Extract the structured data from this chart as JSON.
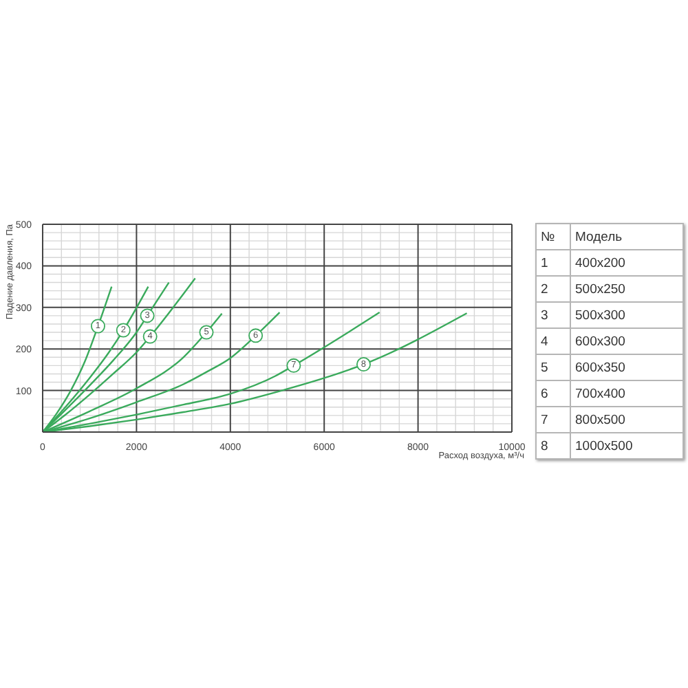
{
  "chart_data": {
    "type": "line",
    "xlabel": "Расход воздуха, м³/ч",
    "ylabel": "Падение давления, Па",
    "xlim": [
      0,
      10000
    ],
    "ylim": [
      0,
      500
    ],
    "xticks": [
      0,
      {
        "value": 400,
        "label": null
      },
      {
        "value": 800,
        "label": null
      },
      {
        "value": 1200,
        "label": null
      },
      {
        "value": 1600,
        "label": null
      },
      2000,
      {
        "value": 2400,
        "label": null
      },
      {
        "value": 2800,
        "label": null
      },
      {
        "value": 3200,
        "label": null
      },
      {
        "value": 3600,
        "label": null
      },
      4000,
      {
        "value": 4400,
        "label": null
      },
      {
        "value": 4800,
        "label": null
      },
      {
        "value": 5200,
        "label": null
      },
      {
        "value": 5600,
        "label": null
      },
      6000,
      {
        "value": 6400,
        "label": null
      },
      {
        "value": 6800,
        "label": null
      },
      {
        "value": 7200,
        "label": null
      },
      {
        "value": 7600,
        "label": null
      },
      8000,
      {
        "value": 8400,
        "label": null
      },
      {
        "value": 8800,
        "label": null
      },
      {
        "value": 9200,
        "label": null
      },
      {
        "value": 9600,
        "label": null
      },
      10000
    ],
    "yticks": [
      {
        "value": 0,
        "label": null
      },
      {
        "value": 20,
        "label": null
      },
      {
        "value": 40,
        "label": null
      },
      {
        "value": 60,
        "label": null
      },
      {
        "value": 80,
        "label": null
      },
      100,
      {
        "value": 120,
        "label": null
      },
      {
        "value": 140,
        "label": null
      },
      {
        "value": 160,
        "label": null
      },
      {
        "value": 180,
        "label": null
      },
      200,
      {
        "value": 220,
        "label": null
      },
      {
        "value": 240,
        "label": null
      },
      {
        "value": 260,
        "label": null
      },
      {
        "value": 280,
        "label": null
      },
      300,
      {
        "value": 320,
        "label": null
      },
      {
        "value": 340,
        "label": null
      },
      {
        "value": 360,
        "label": null
      },
      {
        "value": 380,
        "label": null
      },
      400,
      {
        "value": 420,
        "label": null
      },
      {
        "value": 440,
        "label": null
      },
      {
        "value": 460,
        "label": null
      },
      {
        "value": 480,
        "label": null
      },
      500
    ],
    "grid": true,
    "annotations": [
      "№",
      "Модель",
      "400x200",
      "500x250",
      "500x300",
      "600x300",
      "600x350",
      "700x400",
      "800x500",
      "1000x500"
    ],
    "series": [
      {
        "name": "1",
        "color": "#3aaa5c",
        "x": [
          0,
          300,
          600,
          900,
          1180,
          1470
        ],
        "values": [
          0,
          45,
          100,
          170,
          255,
          350
        ]
      },
      {
        "name": "2",
        "color": "#3aaa5c",
        "x": [
          0,
          500,
          1000,
          1400,
          1720,
          2250
        ],
        "values": [
          0,
          62,
          130,
          190,
          245,
          350
        ]
      },
      {
        "name": "3",
        "color": "#3aaa5c",
        "x": [
          0,
          500,
          1000,
          1500,
          2000,
          2230,
          2690
        ],
        "values": [
          0,
          55,
          112,
          172,
          240,
          280,
          360
        ]
      },
      {
        "name": "4",
        "color": "#3aaa5c",
        "x": [
          0,
          500,
          1000,
          1500,
          2000,
          2290,
          3250
        ],
        "values": [
          0,
          43,
          90,
          140,
          192,
          230,
          370
        ]
      },
      {
        "name": "5",
        "color": "#3aaa5c",
        "x": [
          0,
          1000,
          2000,
          3000,
          3490,
          3820
        ],
        "values": [
          0,
          50,
          105,
          180,
          240,
          285
        ]
      },
      {
        "name": "6",
        "color": "#3aaa5c",
        "x": [
          0,
          1000,
          2000,
          3000,
          3500,
          4000,
          4540,
          5050
        ],
        "values": [
          0,
          33,
          72,
          115,
          145,
          178,
          232,
          288
        ]
      },
      {
        "name": "7",
        "color": "#3aaa5c",
        "x": [
          0,
          1000,
          2000,
          3000,
          4000,
          4960,
          5350,
          7180
        ],
        "values": [
          0,
          20,
          42,
          66,
          92,
          135,
          160,
          288
        ]
      },
      {
        "name": "8",
        "color": "#3aaa5c",
        "x": [
          0,
          1000,
          2000,
          3000,
          4000,
          5100,
          6000,
          6840,
          9040
        ],
        "values": [
          0,
          14,
          30,
          48,
          68,
          100,
          130,
          163,
          286
        ]
      }
    ]
  }
}
